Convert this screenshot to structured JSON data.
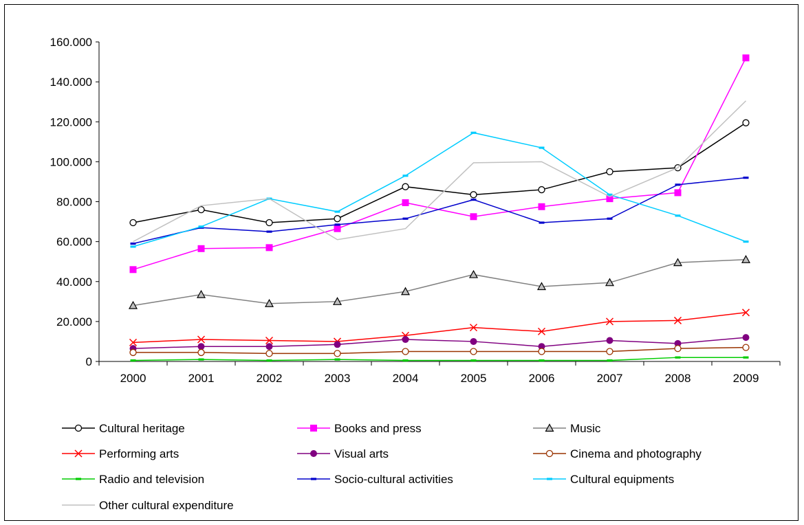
{
  "chart_data": {
    "type": "line",
    "title": "",
    "xlabel": "",
    "ylabel": "",
    "categories": [
      "2000",
      "2001",
      "2002",
      "2003",
      "2004",
      "2005",
      "2006",
      "2007",
      "2008",
      "2009"
    ],
    "ylim": [
      0,
      160000
    ],
    "yticks": [
      0,
      20000,
      40000,
      60000,
      80000,
      100000,
      120000,
      140000,
      160000
    ],
    "ytick_labels": [
      "0",
      "20.000",
      "40.000",
      "60.000",
      "80.000",
      "100.000",
      "120.000",
      "140.000",
      "160.000"
    ],
    "grid": false,
    "legend_position": "bottom",
    "series": [
      {
        "name": "Cultural heritage",
        "color": "#000000",
        "marker": "circle-open",
        "values": [
          69500,
          76000,
          69500,
          71500,
          87500,
          83500,
          86000,
          95000,
          97000,
          119500
        ]
      },
      {
        "name": "Books and press",
        "color": "#ff00ff",
        "marker": "square",
        "values": [
          46000,
          56500,
          57000,
          66500,
          79500,
          72500,
          77500,
          81500,
          84500,
          152000
        ]
      },
      {
        "name": "Music",
        "color": "#808080",
        "marker": "triangle-open",
        "values": [
          28000,
          33500,
          29000,
          30000,
          35000,
          43500,
          37500,
          39500,
          49500,
          51000
        ]
      },
      {
        "name": "Performing arts",
        "color": "#ff0000",
        "marker": "x",
        "values": [
          9500,
          11000,
          10500,
          10000,
          13000,
          17000,
          15000,
          20000,
          20500,
          24500
        ]
      },
      {
        "name": "Visual arts",
        "color": "#800080",
        "marker": "circle",
        "values": [
          6500,
          7500,
          7500,
          8500,
          11000,
          10000,
          7500,
          10500,
          9000,
          12000
        ]
      },
      {
        "name": "Cinema and photography",
        "color": "#993300",
        "marker": "circle-open",
        "values": [
          4500,
          4500,
          4000,
          4000,
          5000,
          5000,
          5000,
          5000,
          6500,
          7000
        ]
      },
      {
        "name": "Radio and television",
        "color": "#00cc00",
        "marker": "dash",
        "values": [
          500,
          1000,
          500,
          1000,
          500,
          500,
          500,
          500,
          2000,
          2000
        ]
      },
      {
        "name": "Socio-cultural activities",
        "color": "#0000cc",
        "marker": "dash",
        "values": [
          59000,
          67000,
          65000,
          68500,
          71500,
          81000,
          69500,
          71500,
          88500,
          92000
        ]
      },
      {
        "name": "Cultural equipments",
        "color": "#00ccff",
        "marker": "dash",
        "values": [
          57500,
          67500,
          81500,
          75000,
          93000,
          114500,
          107000,
          83500,
          73000,
          60000
        ]
      },
      {
        "name": "Other cultural expenditure",
        "color": "#c0c0c0",
        "marker": "none",
        "values": [
          60000,
          78000,
          81500,
          61000,
          66500,
          99500,
          100000,
          82500,
          97000,
          130500
        ]
      }
    ]
  }
}
